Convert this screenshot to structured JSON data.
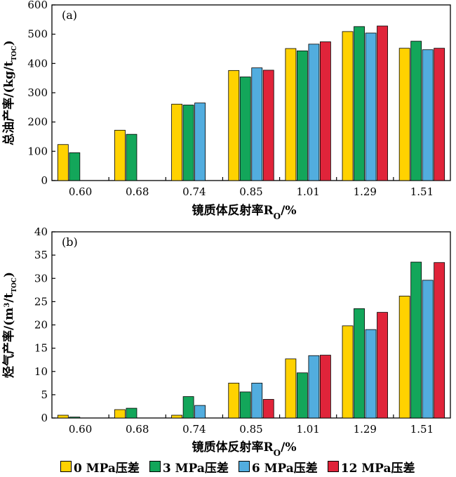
{
  "chart_data": [
    {
      "type": "bar",
      "panel_label": "(a)",
      "ylabel": "总油产率/(kg/t",
      "ylabel_sub": "TOC",
      "ylabel_end": ")",
      "xlabel": "镜质体反射率R",
      "xlabel_sub": "O",
      "xlabel_end": "/%",
      "ylim": [
        0,
        600
      ],
      "yticks": [
        "0",
        "100",
        "200",
        "300",
        "400",
        "500",
        "600"
      ],
      "categories": [
        "0.60",
        "0.68",
        "0.74",
        "0.85",
        "1.01",
        "1.29",
        "1.51"
      ],
      "series": [
        {
          "name": "0 MPa压差",
          "values": [
            123,
            172,
            261,
            376,
            451,
            509,
            452
          ]
        },
        {
          "name": "3 MPa压差",
          "values": [
            95,
            158,
            258,
            354,
            443,
            526,
            476
          ]
        },
        {
          "name": "6 MPa压差",
          "values": [
            null,
            null,
            265,
            385,
            466,
            504,
            447
          ]
        },
        {
          "name": "12 MPa压差",
          "values": [
            null,
            null,
            null,
            377,
            474,
            528,
            452
          ]
        }
      ]
    },
    {
      "type": "bar",
      "panel_label": "(b)",
      "ylabel": "烃气产率/(m",
      "ylabel_sup": "3",
      "ylabel_mid": "/t",
      "ylabel_sub": "TOC",
      "ylabel_end": ")",
      "xlabel": "镜质体反射率R",
      "xlabel_sub": "O",
      "xlabel_end": "/%",
      "ylim": [
        0,
        40
      ],
      "yticks": [
        "0",
        "5",
        "10",
        "15",
        "20",
        "25",
        "30",
        "35",
        "40"
      ],
      "categories": [
        "0.60",
        "0.68",
        "0.74",
        "0.85",
        "1.01",
        "1.29",
        "1.51"
      ],
      "series": [
        {
          "name": "0 MPa压差",
          "values": [
            0.6,
            1.8,
            0.6,
            7.5,
            12.7,
            19.8,
            26.2
          ]
        },
        {
          "name": "3 MPa压差",
          "values": [
            0.2,
            2.1,
            4.6,
            5.6,
            9.7,
            23.5,
            33.5
          ]
        },
        {
          "name": "6 MPa压差",
          "values": [
            null,
            null,
            2.7,
            7.5,
            13.4,
            19.0,
            29.6
          ]
        },
        {
          "name": "12 MPa压差",
          "values": [
            null,
            null,
            null,
            4.0,
            13.5,
            22.7,
            33.4
          ]
        }
      ]
    }
  ],
  "legend": {
    "placement": "bottom",
    "items": [
      {
        "label": "0 MPa压差",
        "color": "#ffd200"
      },
      {
        "label": "3 MPa压差",
        "color": "#13a65a"
      },
      {
        "label": "6 MPa压差",
        "color": "#52addf"
      },
      {
        "label": "12 MPa压差",
        "color": "#e0243a"
      }
    ]
  }
}
